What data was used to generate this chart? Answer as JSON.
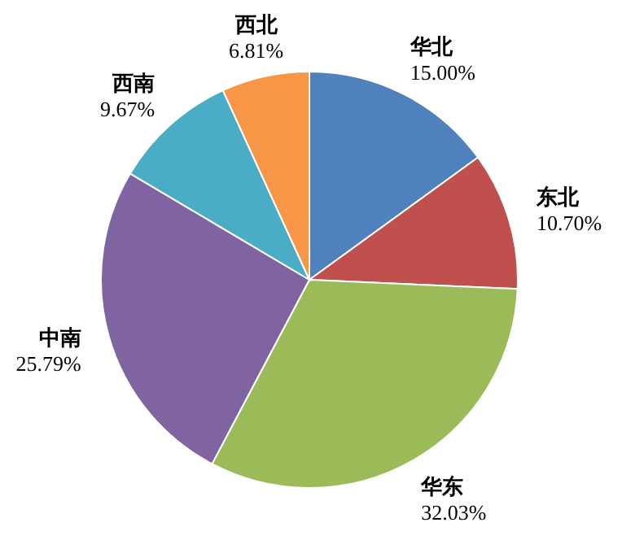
{
  "chart_data": {
    "type": "pie",
    "categories": [
      "华北",
      "东北",
      "华东",
      "中南",
      "西南",
      "西北"
    ],
    "values": [
      15.0,
      10.7,
      32.03,
      25.79,
      9.67,
      6.81
    ],
    "colors": [
      "#4f81bd",
      "#c0504d",
      "#9bbb59",
      "#8064a2",
      "#4bacc6",
      "#f79646"
    ],
    "value_labels": [
      "15.00%",
      "10.70%",
      "32.03%",
      "25.79%",
      "9.67%",
      "6.81%"
    ]
  }
}
